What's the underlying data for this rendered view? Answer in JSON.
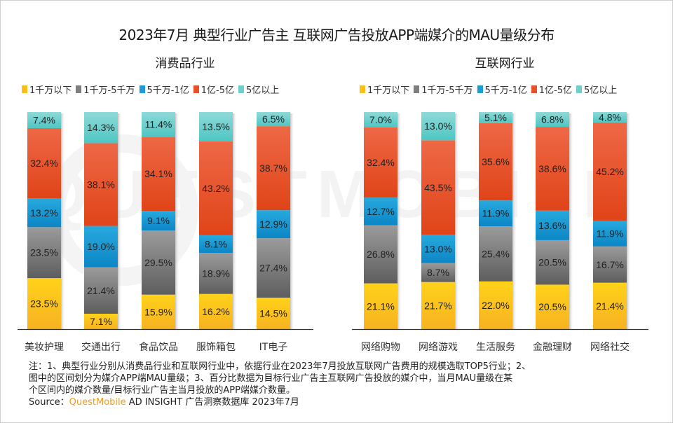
{
  "title": "2023年7月 典型行业广告主 互联网广告投放APP端媒介的MAU量级分布",
  "watermark": "QUESTMOBILE",
  "legend": [
    {
      "label": "1千万以下",
      "color": "#fbbf1a"
    },
    {
      "label": "1千万-5千万",
      "color": "#7f7f7f"
    },
    {
      "label": "5千万-1亿",
      "color": "#1a9ad6"
    },
    {
      "label": "1亿-5亿",
      "color": "#e8502a"
    },
    {
      "label": "5亿以上",
      "color": "#6fcfcc"
    }
  ],
  "chart_data": [
    {
      "type": "bar",
      "stacked": true,
      "title": "消费品行业",
      "categories": [
        "美妆护理",
        "交通出行",
        "食品饮品",
        "服饰箱包",
        "IT电子"
      ],
      "series": [
        {
          "name": "1千万以下",
          "values": [
            23.5,
            7.1,
            15.9,
            16.2,
            14.5
          ]
        },
        {
          "name": "1千万-5千万",
          "values": [
            23.5,
            21.4,
            29.5,
            18.9,
            27.4
          ]
        },
        {
          "name": "5千万-1亿",
          "values": [
            13.2,
            19.0,
            9.1,
            8.1,
            12.9
          ]
        },
        {
          "name": "1亿-5亿",
          "values": [
            32.4,
            38.1,
            34.1,
            43.2,
            38.7
          ]
        },
        {
          "name": "5亿以上",
          "values": [
            7.4,
            14.3,
            11.4,
            13.5,
            6.5
          ]
        }
      ],
      "unit": "%",
      "ylim": [
        0,
        100
      ],
      "grid": false,
      "legend_position": "top-left"
    },
    {
      "type": "bar",
      "stacked": true,
      "title": "互联网行业",
      "categories": [
        "网络购物",
        "网络游戏",
        "生活服务",
        "金融理财",
        "网络社交"
      ],
      "series": [
        {
          "name": "1千万以下",
          "values": [
            21.1,
            21.7,
            22.0,
            20.5,
            21.4
          ]
        },
        {
          "name": "1千万-5千万",
          "values": [
            26.8,
            8.7,
            25.4,
            20.5,
            16.7
          ]
        },
        {
          "name": "5千万-1亿",
          "values": [
            12.7,
            13.0,
            11.9,
            13.6,
            11.9
          ]
        },
        {
          "name": "1亿-5亿",
          "values": [
            32.4,
            43.5,
            35.6,
            38.6,
            45.2
          ]
        },
        {
          "name": "5亿以上",
          "values": [
            7.0,
            13.0,
            5.1,
            6.8,
            4.8
          ]
        }
      ],
      "unit": "%",
      "ylim": [
        0,
        100
      ],
      "grid": false,
      "legend_position": "top-right"
    }
  ],
  "notes": {
    "line1": "注：1、典型行业分别从消费品行业和互联网行业中，依据行业在2023年7月投放互联网广告费用的规模选取TOP5行业；2、",
    "line2": "图中的区间划分为媒介APP端MAU量级；3、百分比数据为目标行业广告主互联网广告投放的媒介中，当月MAU量级在某",
    "line3": "个区间内的媒介数量/目标行业广告主当月投放的APP端媒介数量。",
    "source_label": "Source：",
    "source_brand": "QuestMobile",
    "source_rest": " AD INSIGHT 广告洞察数据库 2023年7月"
  }
}
